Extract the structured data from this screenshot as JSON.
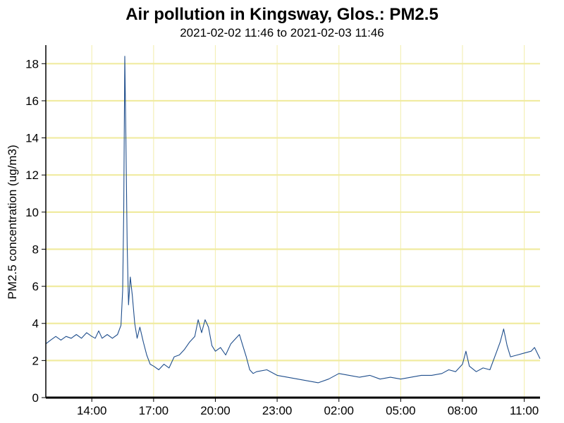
{
  "chart_data": {
    "type": "line",
    "title": "Air pollution in Kingsway, Glos.: PM2.5",
    "subtitle": "2021-02-02 11:46 to 2021-02-03 11:46",
    "xlabel": "",
    "ylabel": "PM2.5 concentration (ug/m3)",
    "ylim": [
      0,
      19
    ],
    "xlim": [
      "2021-02-02 11:46",
      "2021-02-03 11:46"
    ],
    "grid": true,
    "colors": {
      "line": "#1f4e8c",
      "grid_h": "#f0eba0",
      "grid_v": "#f4f0b8",
      "axis": "#000000"
    },
    "y_ticks": [
      0,
      2,
      4,
      6,
      8,
      10,
      12,
      14,
      16,
      18
    ],
    "x_ticks": [
      {
        "t": "2021-02-02 14:00",
        "label": "14:00"
      },
      {
        "t": "2021-02-02 17:00",
        "label": "17:00"
      },
      {
        "t": "2021-02-02 20:00",
        "label": "20:00"
      },
      {
        "t": "2021-02-02 23:00",
        "label": "23:00"
      },
      {
        "t": "2021-02-03 02:00",
        "label": "02:00"
      },
      {
        "t": "2021-02-03 05:00",
        "label": "05:00"
      },
      {
        "t": "2021-02-03 08:00",
        "label": "08:00"
      },
      {
        "t": "2021-02-03 11:00",
        "label": "11:00"
      }
    ],
    "series": [
      {
        "points": [
          [
            "2021-02-02 11:46",
            2.9
          ],
          [
            "2021-02-02 12:00",
            3.1
          ],
          [
            "2021-02-02 12:15",
            3.3
          ],
          [
            "2021-02-02 12:30",
            3.1
          ],
          [
            "2021-02-02 12:45",
            3.3
          ],
          [
            "2021-02-02 13:00",
            3.2
          ],
          [
            "2021-02-02 13:15",
            3.4
          ],
          [
            "2021-02-02 13:30",
            3.2
          ],
          [
            "2021-02-02 13:45",
            3.5
          ],
          [
            "2021-02-02 14:00",
            3.3
          ],
          [
            "2021-02-02 14:10",
            3.2
          ],
          [
            "2021-02-02 14:20",
            3.6
          ],
          [
            "2021-02-02 14:30",
            3.2
          ],
          [
            "2021-02-02 14:45",
            3.4
          ],
          [
            "2021-02-02 15:00",
            3.2
          ],
          [
            "2021-02-02 15:15",
            3.4
          ],
          [
            "2021-02-02 15:25",
            3.9
          ],
          [
            "2021-02-02 15:30",
            5.8
          ],
          [
            "2021-02-02 15:33",
            10.0
          ],
          [
            "2021-02-02 15:36",
            18.4
          ],
          [
            "2021-02-02 15:39",
            14.5
          ],
          [
            "2021-02-02 15:43",
            8.2
          ],
          [
            "2021-02-02 15:47",
            5.0
          ],
          [
            "2021-02-02 15:52",
            6.5
          ],
          [
            "2021-02-02 15:58",
            5.5
          ],
          [
            "2021-02-02 16:05",
            4.0
          ],
          [
            "2021-02-02 16:12",
            3.2
          ],
          [
            "2021-02-02 16:20",
            3.8
          ],
          [
            "2021-02-02 16:30",
            3.0
          ],
          [
            "2021-02-02 16:40",
            2.3
          ],
          [
            "2021-02-02 16:50",
            1.8
          ],
          [
            "2021-02-02 17:00",
            1.7
          ],
          [
            "2021-02-02 17:15",
            1.5
          ],
          [
            "2021-02-02 17:30",
            1.8
          ],
          [
            "2021-02-02 17:45",
            1.6
          ],
          [
            "2021-02-02 18:00",
            2.2
          ],
          [
            "2021-02-02 18:15",
            2.3
          ],
          [
            "2021-02-02 18:30",
            2.6
          ],
          [
            "2021-02-02 18:45",
            3.0
          ],
          [
            "2021-02-02 19:00",
            3.3
          ],
          [
            "2021-02-02 19:10",
            4.2
          ],
          [
            "2021-02-02 19:20",
            3.5
          ],
          [
            "2021-02-02 19:30",
            4.2
          ],
          [
            "2021-02-02 19:40",
            3.8
          ],
          [
            "2021-02-02 19:50",
            2.8
          ],
          [
            "2021-02-02 20:00",
            2.5
          ],
          [
            "2021-02-02 20:15",
            2.7
          ],
          [
            "2021-02-02 20:30",
            2.3
          ],
          [
            "2021-02-02 20:45",
            2.9
          ],
          [
            "2021-02-02 21:00",
            3.2
          ],
          [
            "2021-02-02 21:10",
            3.4
          ],
          [
            "2021-02-02 21:20",
            2.8
          ],
          [
            "2021-02-02 21:30",
            2.2
          ],
          [
            "2021-02-02 21:40",
            1.5
          ],
          [
            "2021-02-02 21:50",
            1.3
          ],
          [
            "2021-02-02 22:00",
            1.4
          ],
          [
            "2021-02-02 22:30",
            1.5
          ],
          [
            "2021-02-02 23:00",
            1.2
          ],
          [
            "2021-02-02 23:30",
            1.1
          ],
          [
            "2021-02-03 00:00",
            1.0
          ],
          [
            "2021-02-03 00:30",
            0.9
          ],
          [
            "2021-02-03 01:00",
            0.8
          ],
          [
            "2021-02-03 01:30",
            1.0
          ],
          [
            "2021-02-03 02:00",
            1.3
          ],
          [
            "2021-02-03 02:30",
            1.2
          ],
          [
            "2021-02-03 03:00",
            1.1
          ],
          [
            "2021-02-03 03:30",
            1.2
          ],
          [
            "2021-02-03 04:00",
            1.0
          ],
          [
            "2021-02-03 04:30",
            1.1
          ],
          [
            "2021-02-03 05:00",
            1.0
          ],
          [
            "2021-02-03 05:30",
            1.1
          ],
          [
            "2021-02-03 06:00",
            1.2
          ],
          [
            "2021-02-03 06:30",
            1.2
          ],
          [
            "2021-02-03 07:00",
            1.3
          ],
          [
            "2021-02-03 07:20",
            1.5
          ],
          [
            "2021-02-03 07:40",
            1.4
          ],
          [
            "2021-02-03 08:00",
            1.8
          ],
          [
            "2021-02-03 08:10",
            2.5
          ],
          [
            "2021-02-03 08:20",
            1.7
          ],
          [
            "2021-02-03 08:40",
            1.4
          ],
          [
            "2021-02-03 09:00",
            1.6
          ],
          [
            "2021-02-03 09:20",
            1.5
          ],
          [
            "2021-02-03 09:40",
            2.5
          ],
          [
            "2021-02-03 09:50",
            3.0
          ],
          [
            "2021-02-03 10:00",
            3.7
          ],
          [
            "2021-02-03 10:10",
            2.8
          ],
          [
            "2021-02-03 10:20",
            2.2
          ],
          [
            "2021-02-03 10:40",
            2.3
          ],
          [
            "2021-02-03 11:00",
            2.4
          ],
          [
            "2021-02-03 11:20",
            2.5
          ],
          [
            "2021-02-03 11:30",
            2.7
          ],
          [
            "2021-02-03 11:46",
            2.1
          ]
        ]
      }
    ]
  }
}
